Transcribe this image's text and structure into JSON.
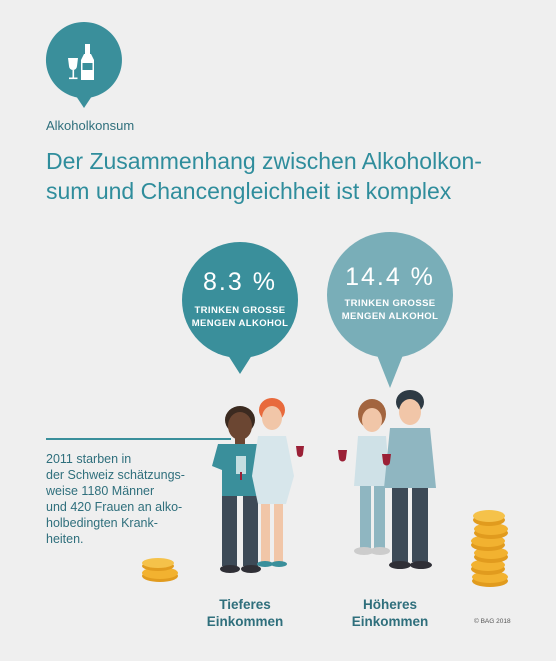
{
  "header": {
    "kicker": "Alkoholkonsum",
    "title_line1": "Der Zusammenhang zwischen Alkoholkon-",
    "title_line2": "sum und Chancengleichheit ist komplex"
  },
  "stats": {
    "low": {
      "value": "8.3 %",
      "label_line1": "TRINKEN GROSSE",
      "label_line2": "MENGEN ALKOHOL"
    },
    "high": {
      "value": "14.4 %",
      "label_line1": "TRINKEN GROSSE",
      "label_line2": "MENGEN ALKOHOL"
    }
  },
  "fact": {
    "lines": [
      "2011 starben in",
      "der Schweiz schätzungs-",
      "weise 1180 Männer",
      "und 420 Frauen an alko-",
      "holbedingten Krank-",
      "heiten."
    ]
  },
  "groups": {
    "low": {
      "line1": "Tieferes",
      "line2": "Einkommen"
    },
    "high": {
      "line1": "Höheres",
      "line2": "Einkommen"
    }
  },
  "copyright": "© BAG 2018",
  "colors": {
    "teal_dark": "#3a8f9b",
    "teal_light": "#79aeb8",
    "title": "#2f8d9c",
    "text": "#2f6f7c",
    "coin": "#f2b230",
    "background": "#efefef"
  }
}
